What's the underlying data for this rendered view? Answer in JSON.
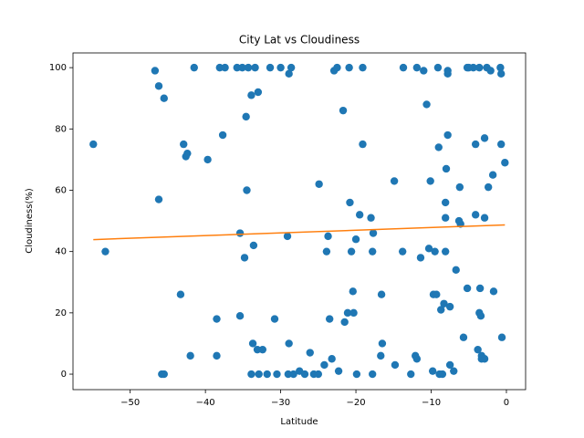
{
  "chart_data": {
    "type": "scatter",
    "title": "City Lat vs Cloudiness",
    "x_label": "Latitude",
    "y_label": "Cloudiness(%)",
    "color": "#1f77b4",
    "x": [
      -54.9,
      -53.3,
      -46.7,
      -46.2,
      -45.5,
      -46.2,
      -45.8,
      -45.5,
      -43.3,
      -42.9,
      -42.6,
      -42.4,
      -42.0,
      -41.5,
      -39.7,
      -38.5,
      -38.5,
      -38.1,
      -37.7,
      -37.4,
      -35.8,
      -35.4,
      -35.4,
      -35.1,
      -34.8,
      -34.6,
      -34.5,
      -34.3,
      -33.9,
      -33.9,
      -33.6,
      -33.7,
      -33.4,
      -33.0,
      -33.1,
      -32.4,
      -32.9,
      -31.8,
      -31.4,
      -30.8,
      -30.5,
      -30.0,
      -29.1,
      -28.9,
      -28.6,
      -28.9,
      -29.0,
      -28.3,
      -27.5,
      -26.8,
      -26.1,
      -25.6,
      -25.0,
      -24.9,
      -24.2,
      -23.9,
      -23.7,
      -23.5,
      -23.2,
      -22.9,
      -22.5,
      -22.3,
      -21.7,
      -21.5,
      -21.1,
      -20.9,
      -20.8,
      -20.6,
      -20.4,
      -20.3,
      -20.0,
      -19.9,
      -19.5,
      -19.1,
      -19.1,
      -18.0,
      -17.8,
      -17.7,
      -17.8,
      -16.6,
      -16.5,
      -16.7,
      -14.8,
      -14.9,
      -13.8,
      -13.7,
      -12.7,
      -12.1,
      -11.9,
      -11.9,
      -11.4,
      -11.0,
      -10.6,
      -10.3,
      -10.1,
      -9.7,
      -9.5,
      -9.8,
      -9.3,
      -9.1,
      -9.0,
      -8.7,
      -8.9,
      -8.5,
      -8.3,
      -8.1,
      -8.1,
      -8.1,
      -8.0,
      -7.8,
      -7.8,
      -7.8,
      -7.5,
      -7.5,
      -7.0,
      -6.7,
      -6.3,
      -6.1,
      -6.2,
      -5.7,
      -5.2,
      -5.2,
      -4.4,
      -4.1,
      -4.1,
      -3.8,
      -3.5,
      -3.6,
      -3.4,
      -3.3,
      -3.3,
      -2.9,
      -2.9,
      -2.9,
      -2.6,
      -2.4,
      -2.1,
      -1.8,
      -1.7,
      -0.8,
      -0.7,
      -0.7,
      -0.6,
      -0.2,
      -3.6,
      -5.0
    ],
    "values": [
      75,
      40,
      99,
      94,
      90,
      57,
      0,
      0,
      26,
      75,
      71,
      72,
      6,
      100,
      70,
      18,
      6,
      100,
      78,
      100,
      100,
      46,
      19,
      100,
      38,
      84,
      60,
      100,
      91,
      0,
      42,
      10,
      100,
      92,
      8,
      8,
      0,
      0,
      100,
      18,
      0,
      100,
      45,
      98,
      100,
      10,
      0,
      0,
      1,
      0,
      7,
      0,
      0,
      62,
      3,
      40,
      45,
      18,
      5,
      99,
      100,
      1,
      86,
      17,
      20,
      100,
      56,
      40,
      27,
      20,
      44,
      0,
      52,
      100,
      75,
      51,
      40,
      46,
      0,
      26,
      10,
      6,
      3,
      63,
      40,
      100,
      0,
      6,
      5,
      100,
      38,
      99,
      88,
      41,
      63,
      26,
      40,
      1,
      26,
      100,
      74,
      21,
      0,
      0,
      23,
      40,
      51,
      56,
      67,
      78,
      98,
      99,
      22,
      3,
      1,
      34,
      50,
      49,
      61,
      12,
      28,
      100,
      100,
      52,
      75,
      8,
      28,
      20,
      19,
      6,
      5,
      51,
      77,
      5,
      100,
      61,
      99,
      65,
      27,
      100,
      98,
      75,
      12,
      69,
      100,
      100
    ],
    "regression": {
      "color": "#ff7f0e",
      "x": [
        -54.9,
        -0.2
      ],
      "values": [
        43.9,
        48.7
      ]
    },
    "xlim": [
      -57.6,
      2.55
    ],
    "ylim": [
      -5.05,
      104.8
    ],
    "xticks": [
      {
        "value": -50,
        "label": "−50"
      },
      {
        "value": -40,
        "label": "−40"
      },
      {
        "value": -30,
        "label": "−30"
      },
      {
        "value": -20,
        "label": "−20"
      },
      {
        "value": -10,
        "label": "−10"
      },
      0
    ],
    "yticks": [
      0,
      20,
      40,
      60,
      80,
      100
    ],
    "grid": false
  }
}
